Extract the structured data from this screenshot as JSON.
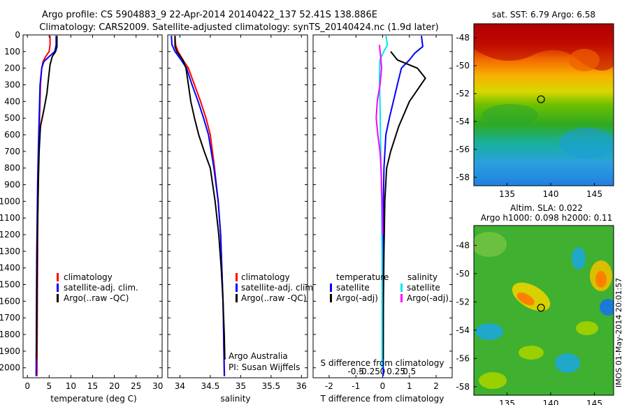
{
  "header": {
    "line1": "Argo profile: CS 5904883_9 22-Apr-2014 20140422_137 52.41S 138.886E",
    "line2": "Climatology: CARS2009. Satellite-adjusted climatology: synTS_20140424.nc (1.9d later)"
  },
  "side_label": "IMOS 01-May-2014 20:01:57",
  "colors": {
    "clim": "#ff0000",
    "sat": "#0000ff",
    "argo": "#000000",
    "sal_sat": "#00e5ee",
    "sal_argo": "#ff00ff",
    "marker": "#cccc00"
  },
  "chart_data": [
    {
      "type": "line",
      "xlabel": "temperature (deg C)",
      "ylabel": "",
      "xlim": [
        -1,
        31
      ],
      "ylim": [
        2060,
        0
      ],
      "xticks": [
        "0",
        "5",
        "10",
        "15",
        "20",
        "25",
        "30"
      ],
      "yticks": [
        "0",
        "100",
        "200",
        "300",
        "400",
        "500",
        "600",
        "700",
        "800",
        "900",
        "1000",
        "1100",
        "1200",
        "1300",
        "1400",
        "1500",
        "1600",
        "1700",
        "1800",
        "1900",
        "2000"
      ],
      "legend": [
        "climatology",
        "satellite-adj. clim.",
        "Argo(..raw -QC)"
      ],
      "series": [
        {
          "name": "climatology",
          "x": [
            5.2,
            5.2,
            5.0,
            4.2,
            3.6,
            3.3,
            3.0,
            2.8,
            2.6,
            2.5,
            2.4,
            2.35,
            2.3,
            2.25,
            2.2
          ],
          "y": [
            5,
            60,
            100,
            130,
            160,
            200,
            300,
            500,
            700,
            900,
            1100,
            1300,
            1500,
            1800,
            2050
          ]
        },
        {
          "name": "satellite-adj. clim.",
          "x": [
            6.6,
            6.6,
            6.3,
            5.0,
            3.8,
            3.3,
            2.9,
            2.7,
            2.5,
            2.35,
            2.25,
            2.15,
            2.1,
            2.05,
            2.0
          ],
          "y": [
            5,
            60,
            100,
            130,
            160,
            200,
            300,
            500,
            700,
            900,
            1100,
            1300,
            1500,
            1800,
            2050
          ]
        },
        {
          "name": "Argo(..raw -QC)",
          "x": [
            6.8,
            6.8,
            6.5,
            5.7,
            5.2,
            4.9,
            4.5,
            3.8,
            3.0,
            2.7,
            2.5,
            2.3,
            2.2,
            2.1
          ],
          "y": [
            5,
            70,
            100,
            130,
            180,
            250,
            350,
            450,
            550,
            700,
            900,
            1200,
            1500,
            1950
          ]
        }
      ]
    },
    {
      "type": "line",
      "xlabel": "salinity",
      "ylabel": "",
      "xlim": [
        33.8,
        36.1
      ],
      "ylim": [
        2060,
        0
      ],
      "xticks": [
        "34",
        "34.5",
        "35",
        "35.5",
        "36"
      ],
      "legend": [
        "climatology",
        "satellite-adj. clim.",
        "Argo(..raw -QC)"
      ],
      "annotation": [
        "Argo Australia",
        "PI: Susan Wijffels"
      ],
      "series": [
        {
          "name": "climatology",
          "x": [
            33.92,
            33.93,
            33.97,
            34.05,
            34.14,
            34.24,
            34.34,
            34.43,
            34.5,
            34.57,
            34.63,
            34.67,
            34.69,
            34.71,
            34.72,
            34.73,
            34.735
          ],
          "y": [
            5,
            60,
            100,
            150,
            200,
            300,
            400,
            500,
            600,
            800,
            1000,
            1200,
            1400,
            1600,
            1800,
            2000,
            2050
          ]
        },
        {
          "name": "satellite-adj. clim.",
          "x": [
            33.86,
            33.87,
            33.92,
            34.02,
            34.11,
            34.2,
            34.3,
            34.39,
            34.47,
            34.56,
            34.63,
            34.67,
            34.69,
            34.71,
            34.72,
            34.73
          ],
          "y": [
            5,
            60,
            100,
            150,
            200,
            300,
            400,
            500,
            600,
            800,
            1000,
            1200,
            1400,
            1600,
            1800,
            2050
          ]
        },
        {
          "name": "Argo(..raw -QC)",
          "x": [
            33.92,
            33.92,
            33.95,
            34.05,
            34.1,
            34.14,
            34.18,
            34.24,
            34.31,
            34.4,
            34.5,
            34.58,
            34.64,
            34.68,
            34.71,
            34.73,
            34.74
          ],
          "y": [
            5,
            70,
            100,
            150,
            200,
            300,
            400,
            500,
            600,
            700,
            800,
            1000,
            1200,
            1400,
            1600,
            1800,
            1950
          ]
        }
      ]
    },
    {
      "type": "line",
      "xlabel": "T difference from climatology",
      "xlabel_top": "S difference from climatology",
      "xlim": [
        -2.6,
        2.6
      ],
      "ylim": [
        2060,
        0
      ],
      "xticks": [
        "-2",
        "-1",
        "0",
        "1",
        "2"
      ],
      "xticks_top": [
        "-0.5",
        "-0.25",
        "0",
        "0.25",
        "0.5"
      ],
      "legend_titles": [
        "temperature",
        "salinity"
      ],
      "legend": [
        "satellite",
        "Argo(-adj)",
        "satellite",
        "Argo(-adj)"
      ],
      "series": [
        {
          "name": "satellite",
          "group": "temperature",
          "x": [
            1.45,
            1.5,
            1.2,
            1.0,
            0.7,
            0.55,
            0.4,
            0.25,
            0.12,
            0.05,
            0.03,
            0.02,
            0.02,
            0.02
          ],
          "y": [
            5,
            70,
            110,
            150,
            200,
            300,
            400,
            500,
            600,
            800,
            1000,
            1300,
            1600,
            2050
          ]
        },
        {
          "name": "Argo(-adj)",
          "group": "temperature",
          "x": [
            0.3,
            0.55,
            1.3,
            1.6,
            1.0,
            0.6,
            0.3,
            0.15,
            0.08,
            0.05,
            0.03,
            0.02
          ],
          "y": [
            100,
            150,
            200,
            260,
            400,
            550,
            700,
            800,
            1000,
            1300,
            1600,
            1950
          ]
        },
        {
          "name": "satellite",
          "group": "salinity",
          "x": [
            0.06,
            0.09,
            0.02,
            -0.05,
            -0.06,
            -0.05,
            -0.04,
            -0.03,
            -0.02,
            -0.01,
            -0.01,
            -0.01
          ],
          "y": [
            5,
            60,
            100,
            150,
            250,
            400,
            600,
            800,
            1000,
            1300,
            1600,
            2000
          ]
        },
        {
          "name": "Argo(-adj)",
          "group": "salinity",
          "x": [
            -0.06,
            -0.04,
            -0.02,
            -0.05,
            -0.1,
            -0.12,
            -0.09,
            -0.05,
            -0.03,
            -0.01,
            0.0
          ],
          "y": [
            60,
            120,
            200,
            300,
            400,
            500,
            600,
            700,
            800,
            1000,
            1200
          ]
        }
      ]
    }
  ],
  "maps": [
    {
      "title": "sat. SST: 6.79  Argo: 6.58",
      "xticks": [
        "135",
        "140",
        "145"
      ],
      "yticks": [
        "-48",
        "-50",
        "-52",
        "-54",
        "-56",
        "-58"
      ],
      "marker": {
        "lon": 138.886,
        "lat": -52.41
      }
    },
    {
      "title_line1": "Altim. SLA: 0.022",
      "title_line2": "Argo h1000: 0.098  h2000: 0.11",
      "xticks": [
        "135",
        "140",
        "145"
      ],
      "yticks": [
        "-48",
        "-50",
        "-52",
        "-54",
        "-56",
        "-58"
      ],
      "marker": {
        "lon": 138.886,
        "lat": -52.41
      }
    }
  ]
}
